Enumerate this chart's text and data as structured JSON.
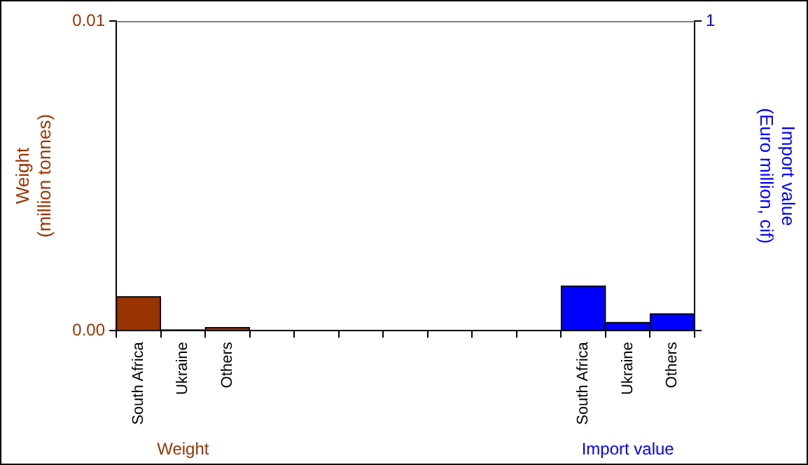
{
  "chart_data": {
    "type": "bar",
    "categories": [
      "South Africa",
      "Ukraine",
      "Others",
      null,
      null,
      null,
      null,
      null,
      null,
      null,
      "South Africa",
      "Ukraine",
      "Others"
    ],
    "series": [
      {
        "name": "Weight",
        "color": "#993300",
        "values": [
          0.0011,
          3e-05,
          0.0001,
          null,
          null,
          null,
          null,
          null,
          null,
          null,
          null,
          null,
          null
        ]
      },
      {
        "name": "Import value",
        "color": "#0000ff",
        "axis": "y2",
        "values": [
          null,
          null,
          null,
          null,
          null,
          null,
          null,
          null,
          null,
          null,
          0.145,
          0.027,
          0.055
        ]
      }
    ],
    "ylabel": "Weight\n(million tonnes)",
    "y2label": "Import value\n(Euro million, cif)",
    "ylim": [
      0,
      0.01
    ],
    "yticks": [
      {
        "value": 0,
        "label": "0.00"
      },
      {
        "value": 0.01,
        "label": "0.01"
      }
    ],
    "y2lim": [
      0,
      1
    ],
    "y2ticks": [
      0,
      1
    ],
    "grid": false,
    "legend": false
  }
}
